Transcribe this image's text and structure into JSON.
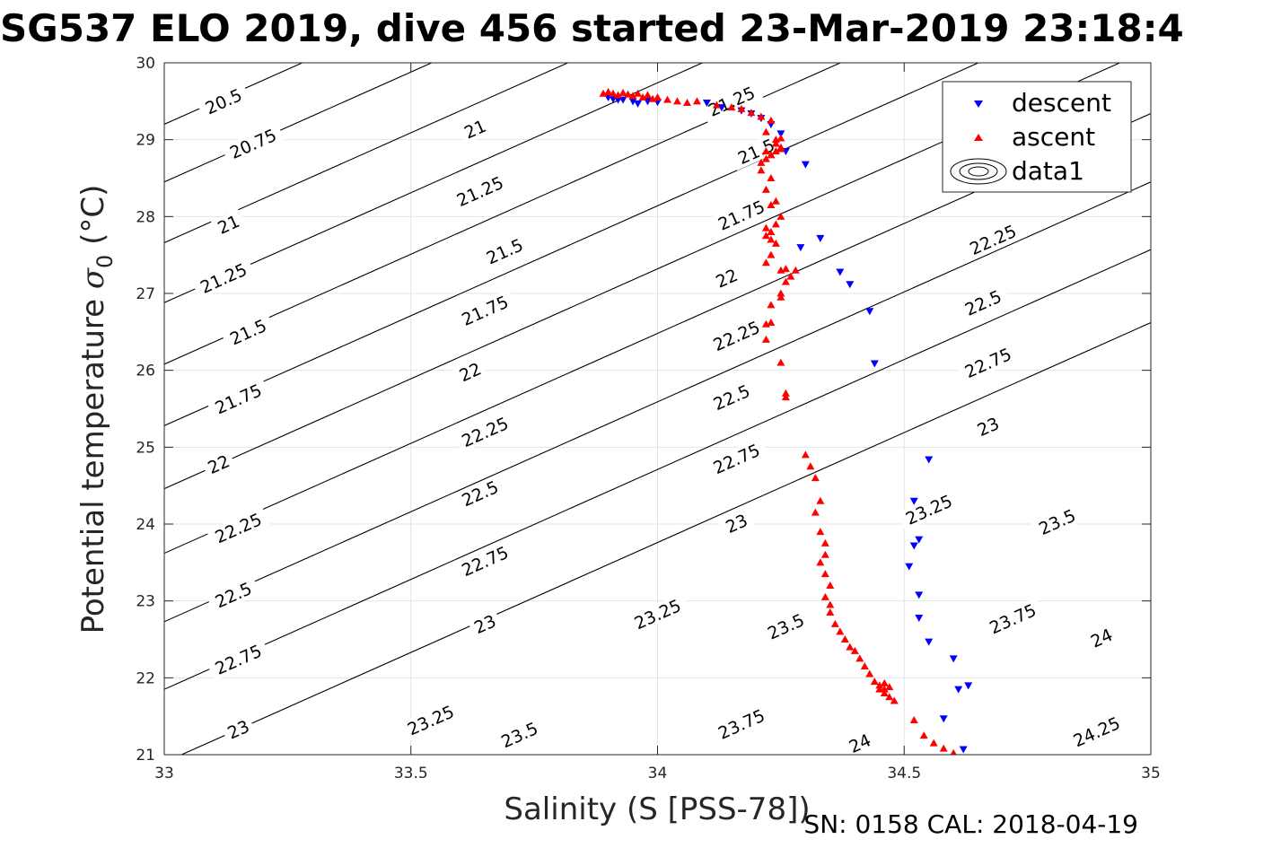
{
  "chart_data": {
    "type": "scatter",
    "title": "SG537 ELO 2019, dive 456 started 23-Mar-2019 23:18:4",
    "xlabel": "Salinity (S [PSS-78])",
    "ylabel_text": "Potential temperature ",
    "ylabel_symbol": "σ",
    "ylabel_sub": "0",
    "ylabel_unit": " (°C)",
    "footer": "SN: 0158  CAL: 2018-04-19",
    "xlim": [
      33,
      35
    ],
    "ylim": [
      21,
      30
    ],
    "xticks": [
      33,
      33.5,
      34,
      34.5,
      35
    ],
    "xtick_labels": [
      "33",
      "33.5",
      "34",
      "34.5",
      "35"
    ],
    "yticks": [
      21,
      22,
      23,
      24,
      25,
      26,
      27,
      28,
      29,
      30
    ],
    "ytick_labels": [
      "21",
      "22",
      "23",
      "24",
      "25",
      "26",
      "27",
      "28",
      "29",
      "30"
    ],
    "grid": true,
    "legend_position": "top-right",
    "legend": [
      "descent",
      "ascent",
      "data1"
    ],
    "contours": {
      "intercepts_at_S33": [
        29.2,
        28.45,
        27.66,
        26.88,
        26.08,
        25.28,
        24.46,
        23.62,
        22.73,
        21.85,
        20.9
      ],
      "slope_degC_per_psu": 2.86,
      "levels": [
        {
          "label": "20.5",
          "S": 33.12,
          "T": 29.5
        },
        {
          "label": "20.75",
          "S": 33.18,
          "T": 28.95
        },
        {
          "label": "21",
          "S": 33.13,
          "T": 27.9
        },
        {
          "label": "21",
          "S": 33.63,
          "T": 29.14
        },
        {
          "label": "21.25",
          "S": 33.12,
          "T": 27.2
        },
        {
          "label": "21.25",
          "S": 33.64,
          "T": 28.33
        },
        {
          "label": "21.25",
          "S": 34.15,
          "T": 29.5
        },
        {
          "label": "21.5",
          "S": 33.17,
          "T": 26.5
        },
        {
          "label": "21.5",
          "S": 33.69,
          "T": 27.55
        },
        {
          "label": "21.5",
          "S": 34.2,
          "T": 28.85
        },
        {
          "label": "21.75",
          "S": 33.15,
          "T": 25.63
        },
        {
          "label": "21.75",
          "S": 33.65,
          "T": 26.78
        },
        {
          "label": "21.75",
          "S": 34.17,
          "T": 28.02
        },
        {
          "label": "22",
          "S": 33.11,
          "T": 24.78
        },
        {
          "label": "22",
          "S": 33.62,
          "T": 25.98
        },
        {
          "label": "22",
          "S": 34.14,
          "T": 27.2
        },
        {
          "label": "22.25",
          "S": 33.15,
          "T": 23.95
        },
        {
          "label": "22.25",
          "S": 33.65,
          "T": 25.2
        },
        {
          "label": "22.25",
          "S": 34.16,
          "T": 26.45
        },
        {
          "label": "22.25",
          "S": 34.68,
          "T": 27.7
        },
        {
          "label": "22.5",
          "S": 33.14,
          "T": 23.08
        },
        {
          "label": "22.5",
          "S": 33.64,
          "T": 24.4
        },
        {
          "label": "22.5",
          "S": 34.15,
          "T": 25.65
        },
        {
          "label": "22.5",
          "S": 34.66,
          "T": 26.88
        },
        {
          "label": "22.75",
          "S": 33.15,
          "T": 22.24
        },
        {
          "label": "22.75",
          "S": 33.65,
          "T": 23.52
        },
        {
          "label": "22.75",
          "S": 34.16,
          "T": 24.85
        },
        {
          "label": "22.75",
          "S": 34.67,
          "T": 26.1
        },
        {
          "label": "23",
          "S": 33.15,
          "T": 21.33
        },
        {
          "label": "23",
          "S": 33.65,
          "T": 22.7
        },
        {
          "label": "23",
          "S": 34.16,
          "T": 24.01
        },
        {
          "label": "23",
          "S": 34.67,
          "T": 25.27
        },
        {
          "label": "23.25",
          "S": 33.54,
          "T": 21.45
        },
        {
          "label": "23.25",
          "S": 34.0,
          "T": 22.83
        },
        {
          "label": "23.25",
          "S": 34.55,
          "T": 24.19
        },
        {
          "label": "23.5",
          "S": 33.72,
          "T": 21.26
        },
        {
          "label": "23.5",
          "S": 34.26,
          "T": 22.67
        },
        {
          "label": "23.5",
          "S": 34.81,
          "T": 24.03
        },
        {
          "label": "23.75",
          "S": 34.17,
          "T": 21.4
        },
        {
          "label": "23.75",
          "S": 34.72,
          "T": 22.77
        },
        {
          "label": "24",
          "S": 34.41,
          "T": 21.15
        },
        {
          "label": "24",
          "S": 34.9,
          "T": 22.52
        },
        {
          "label": "24.25",
          "S": 34.89,
          "T": 21.3
        }
      ]
    },
    "series": [
      {
        "name": "descent",
        "color": "#0000ff",
        "marker": "triangle-down",
        "x": [
          33.9,
          33.91,
          33.92,
          33.93,
          33.95,
          33.96,
          33.98,
          34.0,
          34.1,
          34.13,
          34.17,
          34.19,
          34.21,
          34.23,
          34.25,
          34.26,
          34.3,
          34.29,
          34.33,
          34.37,
          34.39,
          34.43,
          34.44,
          34.55,
          34.52,
          34.53,
          34.52,
          34.51,
          34.53,
          34.53,
          34.55,
          34.6,
          34.63,
          34.61,
          34.58,
          34.62
        ],
        "y": [
          29.55,
          29.53,
          29.52,
          29.52,
          29.5,
          29.47,
          29.5,
          29.49,
          29.48,
          29.42,
          29.38,
          29.34,
          29.28,
          29.2,
          29.08,
          28.85,
          28.68,
          27.6,
          27.72,
          27.28,
          27.12,
          26.77,
          26.09,
          24.84,
          24.3,
          23.8,
          23.72,
          23.45,
          23.08,
          22.78,
          22.47,
          22.25,
          21.9,
          21.85,
          21.47,
          21.07
        ]
      },
      {
        "name": "ascent",
        "color": "#ff0000",
        "marker": "triangle-up",
        "x": [
          33.89,
          33.9,
          33.91,
          33.92,
          33.93,
          33.94,
          33.95,
          33.96,
          33.97,
          33.98,
          33.99,
          34.0,
          34.02,
          34.04,
          34.06,
          34.08,
          34.12,
          34.15,
          34.17,
          34.19,
          34.21,
          34.23,
          34.22,
          34.24,
          34.25,
          34.24,
          34.23,
          34.22,
          34.21,
          34.21,
          34.23,
          34.22,
          34.25,
          34.24,
          34.25,
          34.23,
          34.22,
          34.23,
          34.24,
          34.25,
          34.22,
          34.23,
          34.24,
          34.22,
          34.23,
          34.24,
          34.23,
          34.22,
          34.25,
          34.26,
          34.28,
          34.27,
          34.26,
          34.25,
          34.25,
          34.23,
          34.22,
          34.22,
          34.23,
          34.25,
          34.26,
          34.26,
          34.3,
          34.31,
          34.32,
          34.33,
          34.32,
          34.33,
          34.34,
          34.34,
          34.33,
          34.34,
          34.35,
          34.34,
          34.35,
          34.35,
          34.36,
          34.37,
          34.38,
          34.39,
          34.4,
          34.41,
          34.42,
          34.43,
          34.44,
          34.45,
          34.46,
          34.47,
          34.46,
          34.45,
          34.46,
          34.47,
          34.48,
          34.52,
          34.54,
          34.56,
          34.58,
          34.6
        ],
        "y": [
          29.6,
          29.62,
          29.6,
          29.58,
          29.61,
          29.59,
          29.57,
          29.6,
          29.55,
          29.58,
          29.53,
          29.55,
          29.52,
          29.5,
          29.48,
          29.5,
          29.45,
          29.42,
          29.4,
          29.35,
          29.3,
          29.25,
          29.1,
          29.0,
          28.9,
          28.85,
          28.8,
          28.75,
          28.7,
          28.6,
          28.8,
          28.85,
          28.88,
          28.95,
          29.02,
          28.5,
          28.35,
          28.15,
          28.2,
          28.0,
          27.85,
          27.8,
          27.9,
          27.75,
          27.7,
          27.65,
          27.5,
          27.4,
          27.3,
          27.32,
          27.3,
          27.22,
          27.15,
          27.0,
          26.95,
          26.85,
          26.6,
          26.4,
          26.62,
          26.1,
          25.65,
          25.7,
          24.9,
          24.75,
          24.6,
          24.3,
          24.15,
          23.9,
          23.75,
          23.6,
          23.5,
          23.35,
          23.2,
          23.05,
          22.95,
          22.85,
          22.7,
          22.6,
          22.5,
          22.4,
          22.35,
          22.25,
          22.15,
          22.05,
          21.95,
          21.85,
          21.8,
          21.75,
          21.85,
          21.9,
          21.93,
          21.88,
          21.7,
          21.45,
          21.25,
          21.15,
          21.08,
          21.02
        ]
      }
    ]
  }
}
